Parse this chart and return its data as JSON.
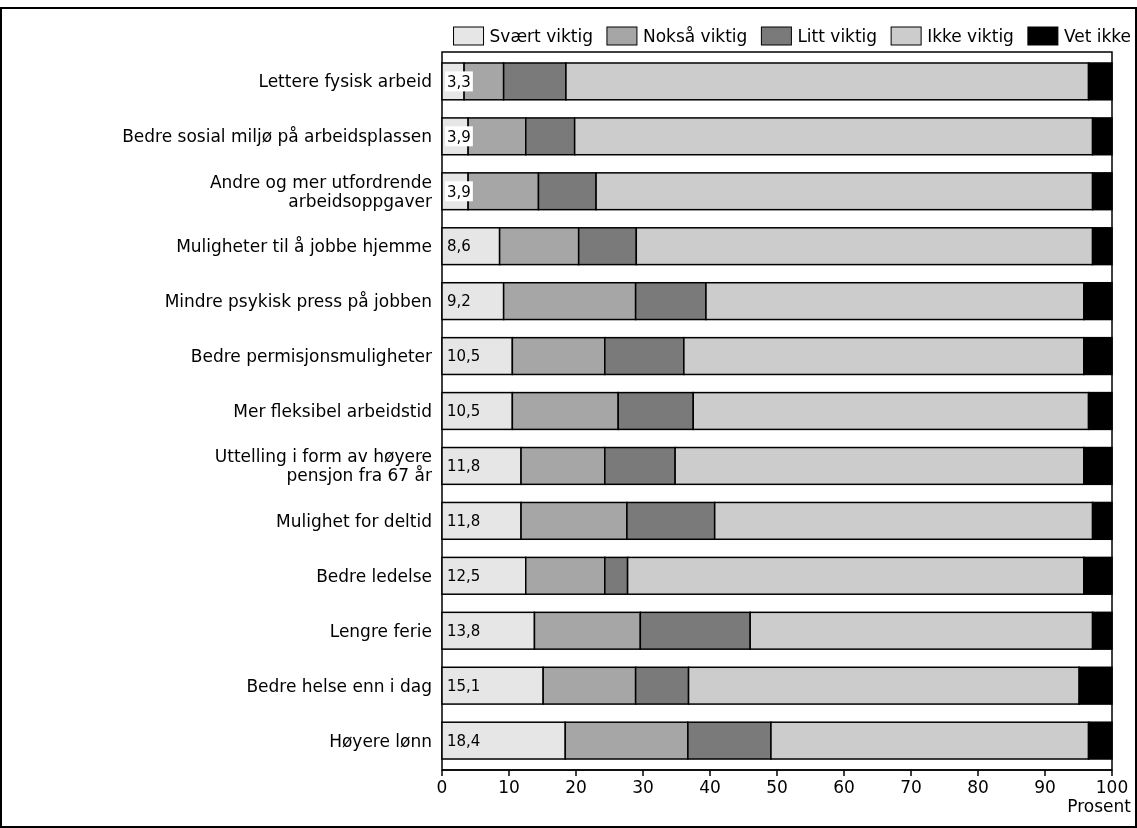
{
  "chart_data": {
    "type": "bar",
    "orientation": "horizontal",
    "stacked": true,
    "xlabel": "Prosent",
    "categories": [
      "Lettere fysisk arbeid",
      "Bedre sosial miljø på arbeidsplassen",
      "Andre og mer utfordrende\narbeidsoppgaver",
      "Muligheter til å jobbe hjemme",
      "Mindre psykisk press på jobben",
      "Bedre permisjonsmuligheter",
      "Mer fleksibel arbeidstid",
      "Uttelling i form av høyere\npensjon fra 67 år",
      "Mulighet for deltid",
      "Bedre ledelse",
      "Lengre ferie",
      "Bedre helse enn i dag",
      "Høyere lønn"
    ],
    "series": [
      {
        "name": "Svært viktig",
        "color": "#e6e6e6",
        "values": [
          3.3,
          3.9,
          3.9,
          8.6,
          9.2,
          10.5,
          10.5,
          11.8,
          11.8,
          12.5,
          13.8,
          15.1,
          18.4
        ],
        "value_labels": [
          "3,3",
          "3,9",
          "3,9",
          "8,6",
          "9,2",
          "10,5",
          "10,5",
          "11,8",
          "11,8",
          "12,5",
          "13,8",
          "15,1",
          "18,4"
        ]
      },
      {
        "name": "Nokså viktig",
        "color": "#a6a6a6",
        "values": [
          5.9,
          8.6,
          10.5,
          11.8,
          19.7,
          13.8,
          15.8,
          12.5,
          15.8,
          11.8,
          15.8,
          13.8,
          18.3
        ]
      },
      {
        "name": "Litt viktig",
        "color": "#7a7a7a",
        "values": [
          9.3,
          7.3,
          8.6,
          8.6,
          10.5,
          11.8,
          11.2,
          10.5,
          13.1,
          3.4,
          16.4,
          7.9,
          12.4
        ]
      },
      {
        "name": "Ikke viktig",
        "color": "#cccccc",
        "values": [
          78.0,
          77.3,
          74.1,
          68.1,
          56.4,
          59.7,
          59.0,
          61.0,
          56.4,
          68.1,
          51.1,
          58.3,
          47.4
        ]
      },
      {
        "name": "Vet ikke",
        "color": "#000000",
        "values": [
          3.5,
          2.9,
          2.9,
          2.9,
          4.2,
          4.2,
          3.5,
          4.2,
          2.9,
          4.2,
          2.9,
          4.9,
          3.5
        ]
      }
    ],
    "xlim": [
      0,
      100
    ],
    "xticks": [
      0,
      10,
      20,
      30,
      40,
      50,
      60,
      70,
      80,
      90,
      100
    ],
    "grid": false,
    "legend": "top right"
  }
}
